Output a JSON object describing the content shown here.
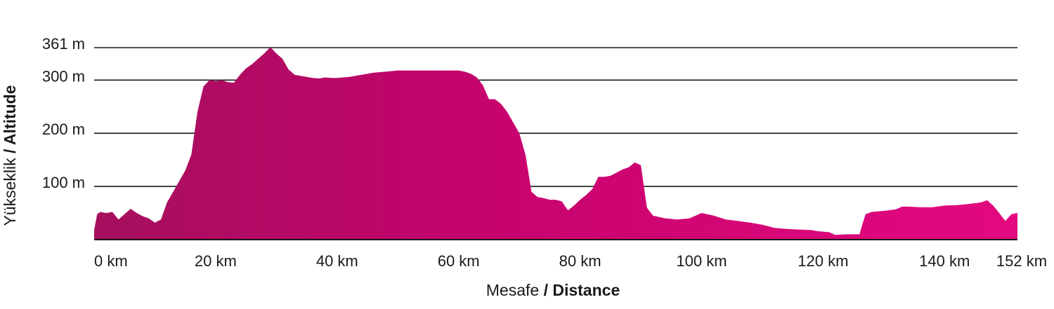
{
  "chart_data": {
    "type": "area",
    "xlabel_plain": "Mesafe",
    "xlabel_bold": "/ Distance",
    "ylabel_plain": "Yükseklik",
    "ylabel_bold": "/ Altitude",
    "xlim": [
      0,
      152
    ],
    "ylim": [
      0,
      361
    ],
    "x_ticks": [
      {
        "value": 0,
        "label": "0 km"
      },
      {
        "value": 20,
        "label": "20 km"
      },
      {
        "value": 40,
        "label": "40 km"
      },
      {
        "value": 60,
        "label": "60 km"
      },
      {
        "value": 80,
        "label": "80 km"
      },
      {
        "value": 100,
        "label": "100 km"
      },
      {
        "value": 120,
        "label": "120 km"
      },
      {
        "value": 140,
        "label": "140 km"
      },
      {
        "value": 152,
        "label": "152 km"
      }
    ],
    "y_ticks": [
      {
        "value": 100,
        "label": "100 m"
      },
      {
        "value": 200,
        "label": "200 m"
      },
      {
        "value": 300,
        "label": "300 m"
      },
      {
        "value": 361,
        "label": "361 m"
      }
    ],
    "gridlines": [
      100,
      200,
      300,
      361
    ],
    "colors": {
      "fill_start": "#a50f5d",
      "fill_mid": "#c8036f",
      "fill_end": "#e3097f",
      "grid": "#1a1a1a"
    },
    "series": [
      {
        "x": [
          0,
          0.5,
          1,
          2,
          3,
          4,
          5,
          6,
          7,
          8,
          9,
          10,
          11,
          12,
          13,
          14,
          15,
          16,
          17,
          18,
          19,
          20,
          21,
          22,
          23,
          24,
          25,
          26,
          27,
          28,
          29,
          30,
          31,
          32,
          33,
          34,
          35,
          36,
          37,
          38,
          39,
          40,
          42,
          44,
          46,
          48,
          50,
          52,
          54,
          56,
          58,
          60,
          61,
          62,
          63,
          64,
          65,
          66,
          67,
          68,
          69,
          70,
          71,
          72,
          73,
          74,
          75,
          76,
          77,
          78,
          79,
          80,
          81,
          82,
          83,
          84,
          85,
          86,
          87,
          88,
          89,
          90,
          91,
          92,
          94,
          96,
          98,
          100,
          102,
          104,
          106,
          108,
          110,
          112,
          114,
          116,
          118,
          119,
          120,
          121,
          122,
          124,
          126,
          126.5,
          127,
          128,
          130,
          132,
          133,
          134,
          136,
          138,
          140,
          142,
          144,
          146,
          147,
          148,
          149,
          150,
          151,
          152
        ],
        "y": [
          18,
          48,
          52,
          50,
          52,
          38,
          48,
          58,
          50,
          44,
          40,
          32,
          38,
          70,
          90,
          110,
          130,
          160,
          240,
          288,
          300,
          298,
          300,
          296,
          295,
          310,
          322,
          330,
          340,
          350,
          362,
          350,
          340,
          320,
          310,
          308,
          306,
          304,
          303,
          305,
          304,
          304,
          306,
          310,
          314,
          316,
          318,
          318,
          318,
          318,
          318,
          318,
          316,
          312,
          305,
          290,
          264,
          264,
          255,
          240,
          220,
          200,
          160,
          90,
          80,
          78,
          75,
          75,
          72,
          55,
          64,
          75,
          84,
          95,
          118,
          118,
          120,
          126,
          132,
          136,
          145,
          140,
          60,
          45,
          40,
          38,
          40,
          50,
          45,
          38,
          35,
          32,
          28,
          22,
          20,
          19,
          18,
          16,
          15,
          14,
          9,
          10,
          10,
          30,
          48,
          52,
          54,
          57,
          62,
          62,
          61,
          61,
          64,
          65,
          67,
          70,
          74,
          64,
          50,
          35,
          48,
          50
        ]
      }
    ]
  }
}
